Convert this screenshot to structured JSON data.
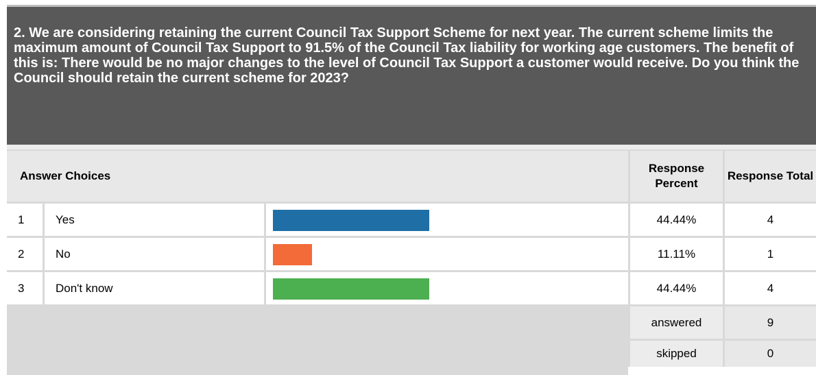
{
  "question": {
    "text": "2. We are considering retaining the current Council Tax Support Scheme for next year. The current scheme limits the maximum amount of Council Tax Support to 91.5% of the Council Tax liability for working age customers. The benefit of this is: There would be no major changes to the level of Council Tax Support a customer would receive. Do you think the Council should retain the current scheme for 2023?"
  },
  "table": {
    "answer_choices_header": "Answer Choices",
    "response_percent_header": "Response Percent",
    "response_total_header": "Response Total"
  },
  "chart_data": {
    "type": "bar",
    "orientation": "horizontal",
    "categories": [
      "Yes",
      "No",
      "Don't know"
    ],
    "values": [
      44.44,
      11.11,
      44.44
    ],
    "totals": [
      4,
      1,
      4
    ],
    "colors": [
      "#1f6fa6",
      "#f26b38",
      "#4caf50"
    ]
  },
  "rows": [
    {
      "num": "1",
      "label": "Yes",
      "percent": "44.44%",
      "total": "4"
    },
    {
      "num": "2",
      "label": "No",
      "percent": "11.11%",
      "total": "1"
    },
    {
      "num": "3",
      "label": "Don't know",
      "percent": "44.44%",
      "total": "4"
    }
  ],
  "summary": {
    "answered_label": "answered",
    "answered_value": "9",
    "skipped_label": "skipped",
    "skipped_value": "0"
  }
}
